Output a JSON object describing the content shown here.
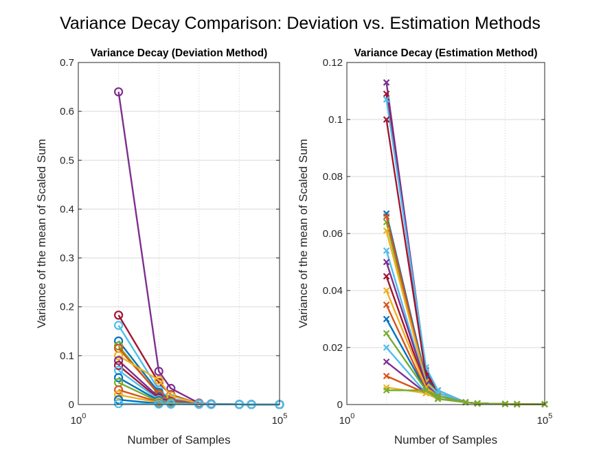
{
  "figure": {
    "suptitle": "Variance Decay Comparison: Deviation vs. Estimation Methods"
  },
  "palette": [
    "#0072BD",
    "#D95319",
    "#EDB120",
    "#7E2F8E",
    "#77AC30",
    "#4DBEEE",
    "#A2142F"
  ],
  "chart_data": [
    {
      "type": "line",
      "marker": "circle",
      "title": "Variance Decay (Deviation Method)",
      "xlabel": "Number of Samples",
      "ylabel": "Variance of the mean of Scaled Sum",
      "xscale": "log",
      "xlim": [
        1,
        100000
      ],
      "ylim": [
        0,
        0.7
      ],
      "yticks": [
        "0",
        "0.1",
        "0.2",
        "0.3",
        "0.4",
        "0.5",
        "0.6",
        "0.7"
      ],
      "xticks": [
        {
          "base": "10",
          "exp": "0"
        },
        {
          "base": "10",
          "exp": "5"
        }
      ],
      "grid": true,
      "x": [
        10,
        100,
        200,
        1000,
        2000,
        10000,
        20000,
        100000
      ],
      "series": [
        {
          "color": "#7E2F8E",
          "values": [
            0.64,
            0.068,
            0.033,
            0.003,
            0.0015,
            0.0005,
            0.0002,
            0.0001
          ]
        },
        {
          "color": "#A2142F",
          "values": [
            0.183,
            0.045,
            0.02,
            0.002,
            0.001,
            0.0004,
            0.0002,
            0.0001
          ]
        },
        {
          "color": "#4DBEEE",
          "values": [
            0.162,
            0.03,
            0.012,
            0.002,
            0.001,
            0.0003,
            0.0002,
            0.0001
          ]
        },
        {
          "color": "#0072BD",
          "values": [
            0.13,
            0.025,
            0.01,
            0.0015,
            0.0008,
            0.0003,
            0.0002,
            0.0001
          ]
        },
        {
          "color": "#77AC30",
          "values": [
            0.12,
            0.02,
            0.008,
            0.0015,
            0.0008,
            0.0003,
            0.0002,
            0.0001
          ]
        },
        {
          "color": "#D95319",
          "values": [
            0.115,
            0.022,
            0.009,
            0.0015,
            0.0008,
            0.0003,
            0.0002,
            0.0001
          ]
        },
        {
          "color": "#EDB120",
          "values": [
            0.1,
            0.05,
            0.018,
            0.0018,
            0.0009,
            0.0003,
            0.0002,
            0.0001
          ]
        },
        {
          "color": "#7E2F8E",
          "values": [
            0.09,
            0.015,
            0.006,
            0.0012,
            0.0007,
            0.0003,
            0.0002,
            0.0001
          ]
        },
        {
          "color": "#A2142F",
          "values": [
            0.08,
            0.012,
            0.005,
            0.001,
            0.0006,
            0.0003,
            0.0002,
            0.0001
          ]
        },
        {
          "color": "#4DBEEE",
          "values": [
            0.07,
            0.01,
            0.004,
            0.001,
            0.0006,
            0.0003,
            0.0002,
            0.0001
          ]
        },
        {
          "color": "#0072BD",
          "values": [
            0.055,
            0.008,
            0.003,
            0.0009,
            0.0005,
            0.0003,
            0.0002,
            0.0001
          ]
        },
        {
          "color": "#77AC30",
          "values": [
            0.045,
            0.006,
            0.003,
            0.0008,
            0.0005,
            0.0003,
            0.0002,
            0.0001
          ]
        },
        {
          "color": "#D95319",
          "values": [
            0.03,
            0.005,
            0.002,
            0.0008,
            0.0005,
            0.0003,
            0.0002,
            0.0001
          ]
        },
        {
          "color": "#EDB120",
          "values": [
            0.02,
            0.004,
            0.002,
            0.0007,
            0.0004,
            0.0003,
            0.0002,
            0.0001
          ]
        },
        {
          "color": "#0072BD",
          "values": [
            0.01,
            0.002,
            0.001,
            0.0005,
            0.0004,
            0.0003,
            0.0002,
            0.0001
          ]
        },
        {
          "color": "#4DBEEE",
          "values": [
            0.002,
            0.001,
            0.0008,
            0.0005,
            0.0004,
            0.0003,
            0.0002,
            0.0001
          ]
        }
      ]
    },
    {
      "type": "line",
      "marker": "x",
      "title": "Variance Decay (Estimation Method)",
      "xlabel": "Number of Samples",
      "ylabel": "Variance of the mean of Scaled Sum",
      "xscale": "log",
      "xlim": [
        1,
        100000
      ],
      "ylim": [
        0,
        0.12
      ],
      "yticks": [
        "0",
        "0.02",
        "0.04",
        "0.06",
        "0.08",
        "0.1",
        "0.12"
      ],
      "xticks": [
        {
          "base": "10",
          "exp": "0"
        },
        {
          "base": "10",
          "exp": "5"
        }
      ],
      "grid": true,
      "x": [
        10,
        100,
        200,
        1000,
        2000,
        10000,
        20000,
        100000
      ],
      "series": [
        {
          "color": "#7E2F8E",
          "values": [
            0.113,
            0.012,
            0.005,
            0.0008,
            0.0004,
            0.0002,
            0.0001,
            0.0001
          ]
        },
        {
          "color": "#A2142F",
          "values": [
            0.109,
            0.011,
            0.005,
            0.0008,
            0.0004,
            0.0002,
            0.0001,
            0.0001
          ]
        },
        {
          "color": "#4DBEEE",
          "values": [
            0.107,
            0.013,
            0.005,
            0.0008,
            0.0004,
            0.0002,
            0.0001,
            0.0001
          ]
        },
        {
          "color": "#A2142F",
          "values": [
            0.1,
            0.01,
            0.004,
            0.0008,
            0.0004,
            0.0002,
            0.0001,
            0.0001
          ]
        },
        {
          "color": "#0072BD",
          "values": [
            0.067,
            0.009,
            0.004,
            0.0008,
            0.0004,
            0.0002,
            0.0001,
            0.0001
          ]
        },
        {
          "color": "#77AC30",
          "values": [
            0.064,
            0.008,
            0.004,
            0.0008,
            0.0004,
            0.0002,
            0.0001,
            0.0001
          ]
        },
        {
          "color": "#D95319",
          "values": [
            0.066,
            0.008,
            0.004,
            0.0008,
            0.0004,
            0.0002,
            0.0001,
            0.0001
          ]
        },
        {
          "color": "#EDB120",
          "values": [
            0.061,
            0.008,
            0.004,
            0.0008,
            0.0004,
            0.0002,
            0.0001,
            0.0001
          ]
        },
        {
          "color": "#4DBEEE",
          "values": [
            0.054,
            0.007,
            0.004,
            0.0008,
            0.0004,
            0.0002,
            0.0001,
            0.0001
          ]
        },
        {
          "color": "#7E2F8E",
          "values": [
            0.05,
            0.007,
            0.003,
            0.0008,
            0.0004,
            0.0002,
            0.0001,
            0.0001
          ]
        },
        {
          "color": "#A2142F",
          "values": [
            0.045,
            0.006,
            0.003,
            0.0008,
            0.0004,
            0.0002,
            0.0001,
            0.0001
          ]
        },
        {
          "color": "#EDB120",
          "values": [
            0.04,
            0.006,
            0.003,
            0.0008,
            0.0004,
            0.0002,
            0.0001,
            0.0001
          ]
        },
        {
          "color": "#D95319",
          "values": [
            0.035,
            0.005,
            0.003,
            0.0008,
            0.0004,
            0.0002,
            0.0001,
            0.0001
          ]
        },
        {
          "color": "#0072BD",
          "values": [
            0.03,
            0.005,
            0.003,
            0.0008,
            0.0004,
            0.0002,
            0.0001,
            0.0001
          ]
        },
        {
          "color": "#77AC30",
          "values": [
            0.025,
            0.005,
            0.003,
            0.0008,
            0.0004,
            0.0002,
            0.0001,
            0.0001
          ]
        },
        {
          "color": "#4DBEEE",
          "values": [
            0.02,
            0.004,
            0.002,
            0.0008,
            0.0004,
            0.0002,
            0.0001,
            0.0001
          ]
        },
        {
          "color": "#7E2F8E",
          "values": [
            0.015,
            0.004,
            0.002,
            0.0008,
            0.0004,
            0.0002,
            0.0001,
            0.0001
          ]
        },
        {
          "color": "#D95319",
          "values": [
            0.01,
            0.004,
            0.002,
            0.0008,
            0.0004,
            0.0002,
            0.0001,
            0.0001
          ]
        },
        {
          "color": "#EDB120",
          "values": [
            0.006,
            0.004,
            0.002,
            0.0008,
            0.0004,
            0.0002,
            0.0001,
            0.0001
          ]
        },
        {
          "color": "#77AC30",
          "values": [
            0.005,
            0.005,
            0.002,
            0.0008,
            0.0004,
            0.0002,
            0.0001,
            0.0001
          ]
        }
      ]
    }
  ]
}
